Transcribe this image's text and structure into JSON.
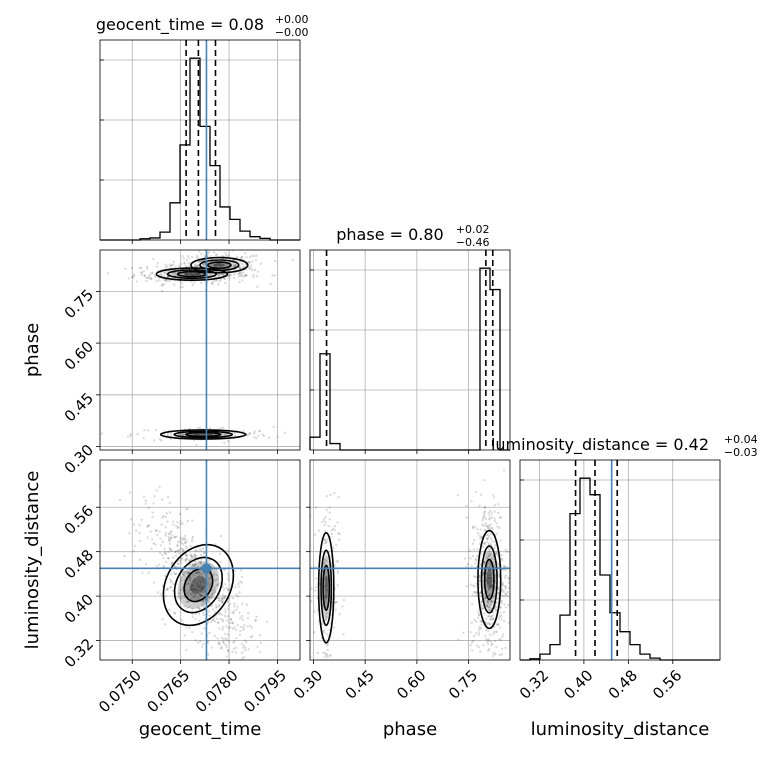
{
  "chart_data": {
    "type": "corner",
    "parameters": [
      "geocent_time",
      "phase",
      "luminosity_distance"
    ],
    "titles": {
      "geocent_time": {
        "prefix": "geocent_time = ",
        "value": "0.08",
        "upper": "+0.00",
        "lower": "−0.00"
      },
      "phase": {
        "prefix": "phase = ",
        "value": "0.80",
        "upper": "+0.02",
        "lower": "−0.46"
      },
      "luminosity_distance": {
        "prefix": "luminosity_distance = ",
        "value": "0.42",
        "upper": "+0.04",
        "lower": "−0.03"
      }
    },
    "axes": {
      "geocent_time": {
        "range": [
          0.074,
          0.0802
        ],
        "ticks": [
          0.075,
          0.0765,
          0.078,
          0.0795
        ],
        "tick_labels": [
          "0.0750",
          "0.0765",
          "0.0780",
          "0.0795"
        ]
      },
      "phase": {
        "range": [
          0.29,
          0.87
        ],
        "ticks": [
          0.3,
          0.45,
          0.6,
          0.75
        ],
        "tick_labels": [
          "0.30",
          "0.45",
          "0.60",
          "0.75"
        ]
      },
      "luminosity_distance": {
        "range": [
          0.285,
          0.645
        ],
        "ticks": [
          0.32,
          0.4,
          0.48,
          0.56
        ],
        "tick_labels": [
          "0.32",
          "0.40",
          "0.48",
          "0.56"
        ]
      }
    },
    "truths": {
      "geocent_time": 0.0773,
      "phase": null,
      "luminosity_distance": 0.45
    },
    "quantiles": {
      "geocent_time": [
        0.07667,
        0.07705,
        0.07758
      ],
      "phase": [
        0.338,
        0.8,
        0.82
      ],
      "luminosity_distance": [
        0.385,
        0.42,
        0.46
      ]
    },
    "histograms": {
      "geocent_time": {
        "edges": [
          0.074,
          0.07431,
          0.07462,
          0.07493,
          0.07524,
          0.07555,
          0.07586,
          0.07617,
          0.07648,
          0.07679,
          0.0771,
          0.07741,
          0.07772,
          0.07803,
          0.07834,
          0.07865,
          0.07896,
          0.07927,
          0.07958,
          0.07989,
          0.0802
        ],
        "counts": [
          0,
          0,
          0,
          0,
          0.6,
          1.0,
          3.8,
          18,
          46,
          88,
          55,
          36,
          16,
          10,
          4.3,
          1.6,
          0.8,
          0,
          0,
          0
        ]
      },
      "phase": {
        "edges": [
          0.29,
          0.319,
          0.348,
          0.377,
          0.406,
          0.435,
          0.464,
          0.493,
          0.522,
          0.551,
          0.58,
          0.609,
          0.638,
          0.667,
          0.696,
          0.725,
          0.754,
          0.783,
          0.812,
          0.841,
          0.87
        ],
        "counts": [
          6,
          45,
          3,
          0,
          0,
          0,
          0,
          0,
          0,
          0,
          0,
          0,
          0,
          0,
          0,
          0,
          0,
          85,
          75,
          0
        ]
      },
      "luminosity_distance": {
        "edges": [
          0.285,
          0.303,
          0.321,
          0.339,
          0.357,
          0.375,
          0.393,
          0.411,
          0.429,
          0.447,
          0.465,
          0.483,
          0.501,
          0.519,
          0.537,
          0.555,
          0.573,
          0.591,
          0.609,
          0.627,
          0.645
        ],
        "counts": [
          0,
          0.5,
          2.5,
          6.5,
          19,
          62,
          77,
          70,
          36,
          20,
          12,
          6.5,
          2.5,
          0.8,
          0,
          0,
          0,
          0,
          0,
          0
        ]
      }
    },
    "modes": {
      "geocent_time_phase": [
        {
          "x": 0.07685,
          "y": 0.8,
          "sx": 0.0005,
          "sy": 0.008,
          "weight": 0.45
        },
        {
          "x": 0.0777,
          "y": 0.826,
          "sx": 0.0004,
          "sy": 0.01,
          "weight": 0.35
        },
        {
          "x": 0.0772,
          "y": 0.335,
          "sx": 0.0006,
          "sy": 0.006,
          "weight": 0.2
        }
      ],
      "geocent_time_luminosity_distance": [
        {
          "x": 0.07705,
          "y": 0.42,
          "sx": 0.00045,
          "sy": 0.035,
          "rho": -0.72,
          "weight": 1.0
        }
      ],
      "phase_luminosity_distance": [
        {
          "x": 0.337,
          "y": 0.415,
          "sx": 0.01,
          "sy": 0.045,
          "weight": 0.25
        },
        {
          "x": 0.81,
          "y": 0.43,
          "sx": 0.015,
          "sy": 0.04,
          "weight": 0.75
        }
      ]
    },
    "grid": true,
    "truth_color": "#4682b4",
    "hist_color": "#000000"
  }
}
